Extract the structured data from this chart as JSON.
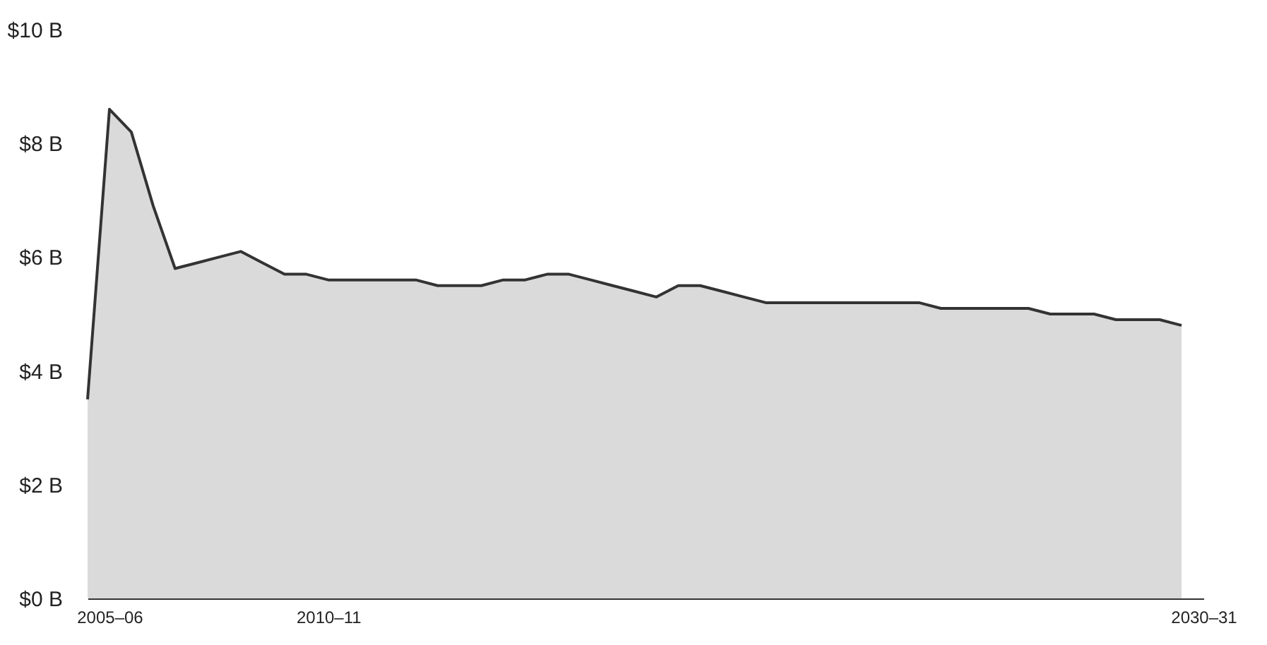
{
  "chart_data": {
    "type": "area",
    "categories": [
      null,
      "2005–06",
      null,
      null,
      null,
      null,
      null,
      null,
      null,
      null,
      null,
      "2010–11",
      null,
      null,
      null,
      null,
      null,
      null,
      null,
      null,
      null,
      null,
      null,
      null,
      null,
      null,
      null,
      null,
      null,
      null,
      null,
      null,
      null,
      null,
      null,
      null,
      null,
      null,
      null,
      null,
      null,
      null,
      null,
      null,
      null,
      null,
      null,
      null,
      null,
      null,
      null,
      "2030–31"
    ],
    "series": [
      {
        "color": "#333333",
        "values": [
          3.5,
          8.6,
          8.2,
          6.9,
          5.8,
          5.9,
          6.0,
          6.1,
          5.9,
          5.7,
          5.7,
          5.6,
          5.6,
          5.6,
          5.6,
          5.6,
          5.5,
          5.5,
          5.5,
          5.6,
          5.6,
          5.7,
          5.7,
          5.6,
          5.5,
          5.4,
          5.3,
          5.5,
          5.5,
          5.4,
          5.3,
          5.2,
          5.2,
          5.2,
          5.2,
          5.2,
          5.2,
          5.2,
          5.2,
          5.1,
          5.1,
          5.1,
          5.1,
          5.1,
          5.0,
          5.0,
          5.0,
          4.9,
          4.9,
          4.9,
          4.8,
          null
        ]
      }
    ],
    "ylim": [
      0,
      10
    ],
    "yticks": [
      {
        "value": 0,
        "label": "$0 B"
      },
      {
        "value": 2,
        "label": "$2 B"
      },
      {
        "value": 4,
        "label": "$4 B"
      },
      {
        "value": 6,
        "label": "$6 B"
      },
      {
        "value": 8,
        "label": "$8 B"
      },
      {
        "value": 10,
        "label": "$10 B"
      }
    ]
  }
}
